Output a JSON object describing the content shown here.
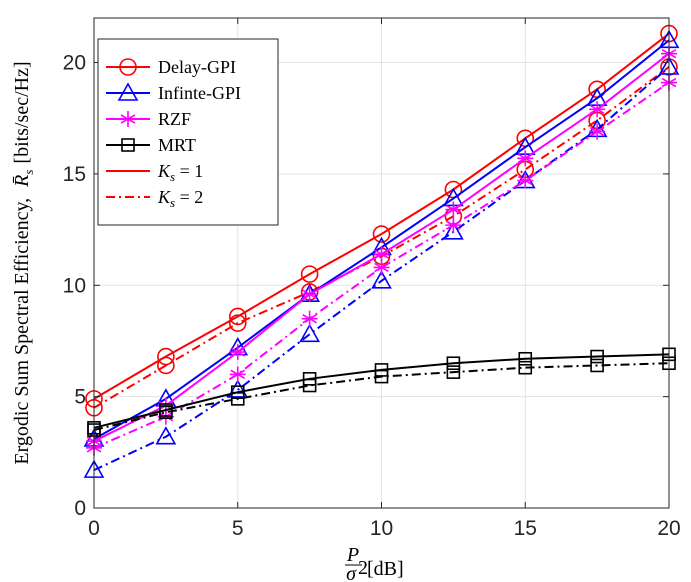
{
  "chart_data": {
    "type": "line",
    "xlabel": "P/σ² [dB]",
    "ylabel": "Ergodic Sum Spectral Efficiency, R̄s [bits/sec/Hz]",
    "xlim": [
      0,
      20
    ],
    "ylim": [
      0,
      22
    ],
    "xticks": [
      0,
      5,
      10,
      15,
      20
    ],
    "yticks": [
      0,
      5,
      10,
      15,
      20
    ],
    "grid": true,
    "legend_position": "top-left",
    "x": [
      0,
      2.5,
      5,
      7.5,
      10,
      12.5,
      15,
      17.5,
      20
    ],
    "series": [
      {
        "name": "Delay-GPI",
        "ks": 1,
        "color": "#ff0000",
        "marker": "circle",
        "dash": "solid",
        "values": [
          4.9,
          6.8,
          8.6,
          10.5,
          12.3,
          14.3,
          16.6,
          18.8,
          21.3
        ]
      },
      {
        "name": "Delay-GPI",
        "ks": 2,
        "color": "#ff0000",
        "marker": "circle",
        "dash": "dashdot",
        "values": [
          4.5,
          6.4,
          8.3,
          9.7,
          11.3,
          13.1,
          15.2,
          17.4,
          19.8
        ]
      },
      {
        "name": "Infinte-GPI",
        "ks": 1,
        "color": "#0000ff",
        "marker": "triangle",
        "dash": "solid",
        "values": [
          3.1,
          4.9,
          7.2,
          9.6,
          11.7,
          13.9,
          16.2,
          18.4,
          21.0
        ]
      },
      {
        "name": "Infinte-GPI",
        "ks": 2,
        "color": "#0000ff",
        "marker": "triangle",
        "dash": "dashdot",
        "values": [
          1.7,
          3.2,
          5.3,
          7.8,
          10.2,
          12.4,
          14.7,
          17.0,
          19.8
        ]
      },
      {
        "name": "RZF",
        "ks": 1,
        "color": "#ff00ff",
        "marker": "asterisk",
        "dash": "solid",
        "values": [
          3.0,
          4.6,
          7.0,
          9.6,
          11.4,
          13.4,
          15.7,
          17.9,
          20.4
        ]
      },
      {
        "name": "RZF",
        "ks": 2,
        "color": "#ff00ff",
        "marker": "asterisk",
        "dash": "dashdot",
        "values": [
          2.7,
          4.1,
          6.0,
          8.5,
          10.8,
          12.7,
          14.7,
          16.9,
          19.1
        ]
      },
      {
        "name": "MRT",
        "ks": 1,
        "color": "#000000",
        "marker": "square",
        "dash": "solid",
        "values": [
          3.6,
          4.4,
          5.2,
          5.8,
          6.2,
          6.5,
          6.7,
          6.8,
          6.9
        ]
      },
      {
        "name": "MRT",
        "ks": 2,
        "color": "#000000",
        "marker": "square",
        "dash": "dashdot",
        "values": [
          3.5,
          4.3,
          4.9,
          5.5,
          5.9,
          6.1,
          6.3,
          6.4,
          6.5
        ]
      }
    ],
    "legend": [
      {
        "label": "Delay-GPI",
        "color": "#ff0000",
        "marker": "circle",
        "dash": "solid"
      },
      {
        "label": "Infinte-GPI",
        "color": "#0000ff",
        "marker": "triangle",
        "dash": "solid"
      },
      {
        "label": "RZF",
        "color": "#ff00ff",
        "marker": "asterisk",
        "dash": "solid"
      },
      {
        "label": "MRT",
        "color": "#000000",
        "marker": "square",
        "dash": "solid"
      },
      {
        "label": "Ks = 1",
        "sym": "K",
        "sub": "s",
        "rest": " = 1",
        "color": "#ff0000",
        "marker": "none",
        "dash": "solid"
      },
      {
        "label": "Ks = 2",
        "sym": "K",
        "sub": "s",
        "rest": " = 2",
        "color": "#ff0000",
        "marker": "none",
        "dash": "dashdot"
      }
    ]
  },
  "labels": {
    "x_P": "P",
    "x_sigma": "σ",
    "x_sup": "2",
    "x_unit": "[dB]",
    "y_main": "Ergodic Sum Spectral Efficiency,",
    "y_sym": "R̄",
    "y_sub": "s",
    "y_unit": "[bits/sec/Hz]"
  }
}
